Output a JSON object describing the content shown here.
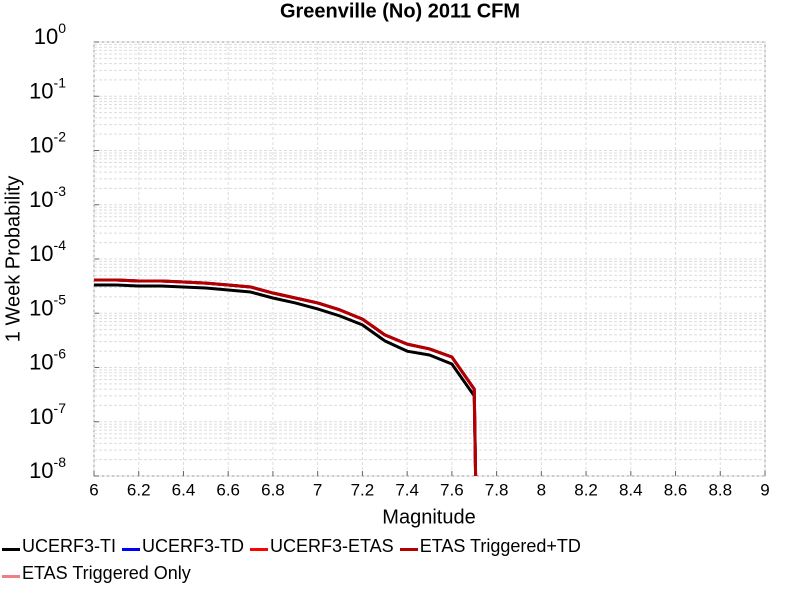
{
  "chart_data": {
    "type": "line",
    "title": "Greenville (No) 2011 CFM",
    "xlabel": "Magnitude",
    "ylabel": "1 Week Probability",
    "log_y": true,
    "grid": true,
    "x": [
      6.0,
      6.1,
      6.2,
      6.3,
      6.4,
      6.5,
      6.6,
      6.7,
      6.8,
      6.9,
      7.0,
      7.1,
      7.2,
      7.3,
      7.4,
      7.5,
      7.6,
      7.7,
      7.71
    ],
    "series": [
      {
        "name": "UCERF3-TI",
        "color": "#000000",
        "values": [
          3.32e-05,
          3.32e-05,
          3.18e-05,
          3.18e-05,
          3.05e-05,
          2.92e-05,
          2.68e-05,
          2.46e-05,
          1.91e-05,
          1.55e-05,
          1.2e-05,
          8.9e-06,
          6.1e-06,
          3.1e-06,
          2e-06,
          1.7e-06,
          1.16e-06,
          3e-07,
          1e-09
        ]
      },
      {
        "name": "UCERF3-TD",
        "color": "#0000ff",
        "values": [
          4.1e-05,
          4.1e-05,
          3.93e-05,
          3.93e-05,
          3.77e-05,
          3.6e-05,
          3.32e-05,
          3.05e-05,
          2.36e-05,
          1.91e-05,
          1.55e-05,
          1.15e-05,
          7.8e-06,
          4e-06,
          2.7e-06,
          2.2e-06,
          1.56e-06,
          4e-07,
          1e-09
        ]
      },
      {
        "name": "UCERF3-ETAS",
        "color": "#ff0000",
        "values": [
          4.1e-05,
          4.1e-05,
          3.93e-05,
          3.93e-05,
          3.77e-05,
          3.6e-05,
          3.32e-05,
          3.05e-05,
          2.36e-05,
          1.91e-05,
          1.55e-05,
          1.15e-05,
          7.8e-06,
          4e-06,
          2.7e-06,
          2.2e-06,
          1.56e-06,
          4e-07,
          1e-09
        ]
      },
      {
        "name": "ETAS Triggered+TD",
        "color": "#b00000",
        "values": [
          4.1e-05,
          4.1e-05,
          3.93e-05,
          3.93e-05,
          3.77e-05,
          3.6e-05,
          3.32e-05,
          3.05e-05,
          2.36e-05,
          1.91e-05,
          1.55e-05,
          1.15e-05,
          7.8e-06,
          4e-06,
          2.7e-06,
          2.2e-06,
          1.56e-06,
          4e-07,
          1e-09
        ]
      },
      {
        "name": "ETAS Triggered Only",
        "color": "#f08080",
        "values": [
          null,
          null,
          null,
          null,
          null,
          null,
          null,
          null,
          null,
          null,
          null,
          null,
          null,
          null,
          null,
          null,
          null,
          null,
          null
        ]
      }
    ],
    "xlim": [
      6,
      9
    ],
    "xticks": [
      6,
      6.2,
      6.4,
      6.6,
      6.8,
      7,
      7.2,
      7.4,
      7.6,
      7.8,
      8,
      8.2,
      8.4,
      8.6,
      8.8,
      9
    ],
    "ylim": [
      1e-08,
      1
    ],
    "yticks": [
      {
        "value": 1,
        "label": "10",
        "power": "0"
      },
      {
        "value": 0.1,
        "label": "10",
        "power": "-1"
      },
      {
        "value": 0.01,
        "label": "10",
        "power": "-2"
      },
      {
        "value": 0.001,
        "label": "10",
        "power": "-3"
      },
      {
        "value": 0.0001,
        "label": "10",
        "power": "-4"
      },
      {
        "value": 1e-05,
        "label": "10",
        "power": "-5"
      },
      {
        "value": 1e-06,
        "label": "10",
        "power": "-6"
      },
      {
        "value": 1e-07,
        "label": "10",
        "power": "-7"
      },
      {
        "value": 1e-08,
        "label": "10",
        "power": "-8"
      }
    ]
  }
}
